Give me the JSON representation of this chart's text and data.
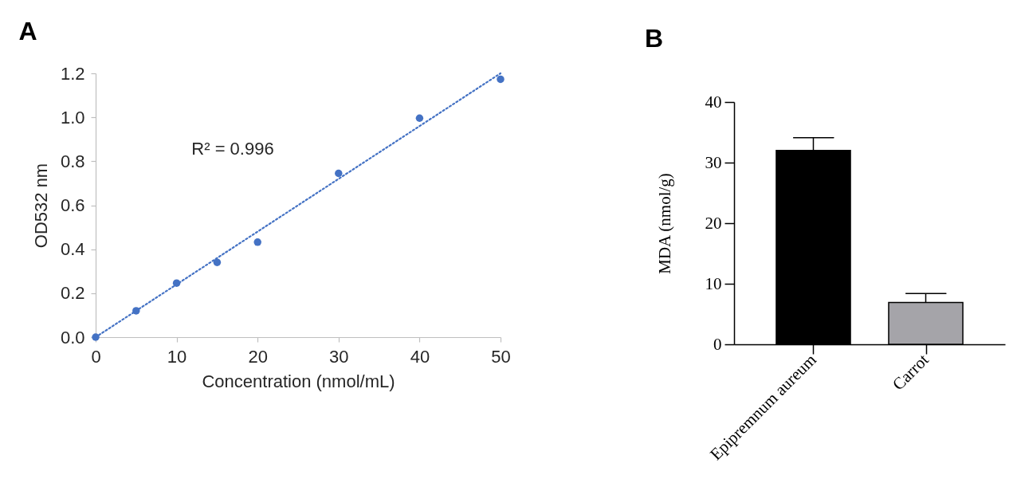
{
  "chart_data": [
    {
      "type": "scatter",
      "title": "A",
      "xlabel": "Concentration (nmol/mL)",
      "ylabel": "OD532 nm",
      "x": [
        0,
        5,
        10,
        15,
        20,
        30,
        40,
        50
      ],
      "series": [
        {
          "type": "scatter",
          "color": "#4472c4",
          "marker": "circle",
          "values": [
            0.0,
            0.12,
            0.246,
            0.34,
            0.432,
            0.745,
            0.996,
            1.173
          ]
        },
        {
          "type": "line",
          "x": [
            0,
            50
          ],
          "color": "#4472c4",
          "line_style": "dotted",
          "values": [
            0.0,
            1.2
          ]
        }
      ],
      "xlim": [
        0,
        50
      ],
      "xticks": [
        0,
        10,
        20,
        30,
        40,
        50
      ],
      "ylim": [
        0,
        1.2
      ],
      "yticks": [
        {
          "value": 0,
          "label": "0.0"
        },
        0.2,
        0.4,
        0.6,
        0.8,
        {
          "value": 1,
          "label": "1.0"
        },
        1.2
      ],
      "annotations": [
        "R² = 0.996"
      ]
    },
    {
      "type": "bar",
      "title": "B",
      "ylabel": "MDA (nmol/g)",
      "categories": [
        "Epipremnum aureum",
        "Carrot"
      ],
      "values": [
        32.0,
        6.9
      ],
      "colors": [
        "#000000",
        "#a5a4a9"
      ],
      "errors": [
        [
          32.0,
          34.1
        ],
        [
          6.9,
          8.4
        ]
      ],
      "ylim": [
        0,
        40
      ],
      "yticks": [
        0,
        10,
        20,
        30,
        40
      ]
    }
  ]
}
